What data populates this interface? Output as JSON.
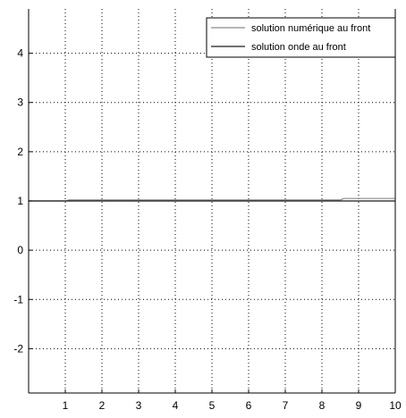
{
  "chart_data": {
    "type": "line",
    "title": "",
    "xlabel": "",
    "ylabel": "",
    "xlim": [
      0,
      10
    ],
    "ylim": [
      -2.9,
      4.9
    ],
    "xticks": [
      1,
      2,
      3,
      4,
      5,
      6,
      7,
      8,
      9,
      10
    ],
    "yticks": [
      -2,
      -1,
      0,
      1,
      2,
      3,
      4
    ],
    "grid": true,
    "legend_position": "top-right",
    "series": [
      {
        "name": "solution numérique au front",
        "color": "#8a8a8a",
        "x": [
          0,
          1,
          1.1,
          8.5,
          8.6,
          10
        ],
        "y": [
          1.0,
          1.0,
          1.02,
          1.02,
          1.05,
          1.05
        ]
      },
      {
        "name": "solution onde au front",
        "color": "#1a1a1a",
        "x": [
          0,
          10
        ],
        "y": [
          1.0,
          1.0
        ]
      }
    ]
  }
}
